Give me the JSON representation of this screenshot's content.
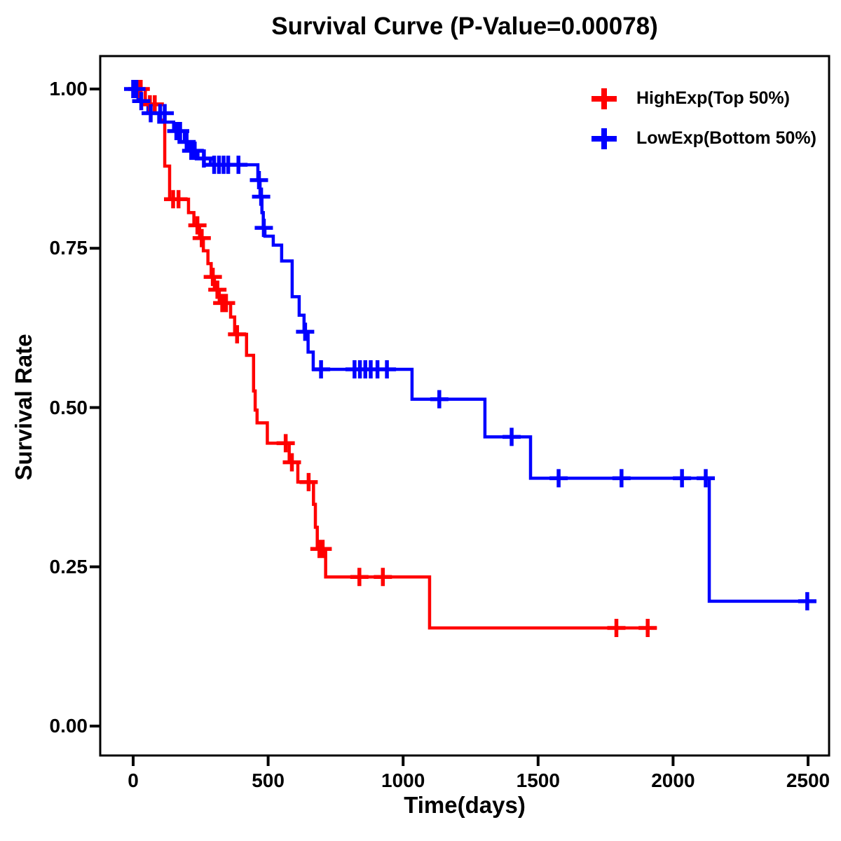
{
  "page": {
    "background_color": "#FFFFFF",
    "text_color": "#000000"
  },
  "chart_data": {
    "type": "line",
    "subtype": "kaplan_meier_step",
    "title": "Survival Curve (P-Value=0.00078)",
    "p_value": "0.00078",
    "xlabel": "Time(days)",
    "ylabel": "Survival Rate",
    "x_ticks": [
      0,
      500,
      1000,
      1500,
      2000,
      2500
    ],
    "x_tick_labels": [
      "0",
      "500",
      "1000",
      "1500",
      "2000",
      "2500"
    ],
    "y_ticks": [
      1.0,
      0.75,
      0.5,
      0.25,
      0.0
    ],
    "y_tick_labels": [
      "1.00",
      "0.75",
      "0.50",
      "0.25",
      "0.00"
    ],
    "xlim": [
      -120,
      2680
    ],
    "ylim": [
      -0.05,
      1.05
    ],
    "grid": false,
    "legend_position": "top-right",
    "axis_color": "#000000",
    "series": [
      {
        "name": "HighExp(Top 50%)",
        "color": "#FF0000",
        "marker": "plus-censor",
        "steps": [
          [
            0,
            1.0
          ],
          [
            45,
            0.976
          ],
          [
            100,
            0.951
          ],
          [
            117,
            0.879
          ],
          [
            135,
            0.827
          ],
          [
            205,
            0.806
          ],
          [
            225,
            0.786
          ],
          [
            246,
            0.766
          ],
          [
            260,
            0.746
          ],
          [
            277,
            0.726
          ],
          [
            289,
            0.705
          ],
          [
            301,
            0.685
          ],
          [
            319,
            0.664
          ],
          [
            361,
            0.642
          ],
          [
            376,
            0.615
          ],
          [
            420,
            0.582
          ],
          [
            446,
            0.526
          ],
          [
            452,
            0.496
          ],
          [
            459,
            0.476
          ],
          [
            497,
            0.444
          ],
          [
            578,
            0.414
          ],
          [
            610,
            0.383
          ],
          [
            668,
            0.348
          ],
          [
            675,
            0.312
          ],
          [
            682,
            0.278
          ],
          [
            713,
            0.234
          ],
          [
            1098,
            0.154
          ]
        ],
        "end_time": 1940,
        "censors": [
          [
            15,
            1.0
          ],
          [
            28,
            1.0
          ],
          [
            62,
            0.976
          ],
          [
            80,
            0.976
          ],
          [
            148,
            0.827
          ],
          [
            168,
            0.827
          ],
          [
            238,
            0.786
          ],
          [
            254,
            0.766
          ],
          [
            295,
            0.705
          ],
          [
            312,
            0.685
          ],
          [
            330,
            0.664
          ],
          [
            344,
            0.664
          ],
          [
            385,
            0.615
          ],
          [
            565,
            0.444
          ],
          [
            588,
            0.414
          ],
          [
            650,
            0.383
          ],
          [
            690,
            0.278
          ],
          [
            702,
            0.278
          ],
          [
            838,
            0.234
          ],
          [
            925,
            0.234
          ],
          [
            1790,
            0.154
          ],
          [
            1906,
            0.154
          ]
        ]
      },
      {
        "name": "LowExp(Bottom 50%)",
        "color": "#0000FF",
        "marker": "plus-censor",
        "steps": [
          [
            0,
            1.0
          ],
          [
            18,
            0.981
          ],
          [
            55,
            0.962
          ],
          [
            95,
            0.948
          ],
          [
            150,
            0.934
          ],
          [
            190,
            0.917
          ],
          [
            205,
            0.903
          ],
          [
            240,
            0.891
          ],
          [
            286,
            0.881
          ],
          [
            462,
            0.857
          ],
          [
            470,
            0.831
          ],
          [
            477,
            0.806
          ],
          [
            482,
            0.782
          ],
          [
            488,
            0.769
          ],
          [
            519,
            0.755
          ],
          [
            550,
            0.73
          ],
          [
            589,
            0.674
          ],
          [
            615,
            0.645
          ],
          [
            633,
            0.619
          ],
          [
            648,
            0.587
          ],
          [
            667,
            0.56
          ],
          [
            1033,
            0.513
          ],
          [
            1303,
            0.454
          ],
          [
            1472,
            0.389
          ],
          [
            2134,
            0.196
          ]
        ],
        "end_time": 2531,
        "censors": [
          [
            0,
            1.0
          ],
          [
            12,
            1.0
          ],
          [
            30,
            0.981
          ],
          [
            65,
            0.962
          ],
          [
            100,
            0.962
          ],
          [
            117,
            0.962
          ],
          [
            160,
            0.934
          ],
          [
            174,
            0.934
          ],
          [
            198,
            0.917
          ],
          [
            215,
            0.903
          ],
          [
            228,
            0.903
          ],
          [
            262,
            0.891
          ],
          [
            300,
            0.881
          ],
          [
            318,
            0.881
          ],
          [
            335,
            0.881
          ],
          [
            352,
            0.881
          ],
          [
            390,
            0.881
          ],
          [
            466,
            0.857
          ],
          [
            474,
            0.831
          ],
          [
            484,
            0.782
          ],
          [
            637,
            0.619
          ],
          [
            696,
            0.56
          ],
          [
            820,
            0.56
          ],
          [
            840,
            0.56
          ],
          [
            860,
            0.56
          ],
          [
            880,
            0.56
          ],
          [
            905,
            0.56
          ],
          [
            940,
            0.56
          ],
          [
            1134,
            0.513
          ],
          [
            1402,
            0.454
          ],
          [
            1576,
            0.389
          ],
          [
            1809,
            0.389
          ],
          [
            2033,
            0.389
          ],
          [
            2121,
            0.389
          ],
          [
            2497,
            0.196
          ]
        ]
      }
    ]
  }
}
